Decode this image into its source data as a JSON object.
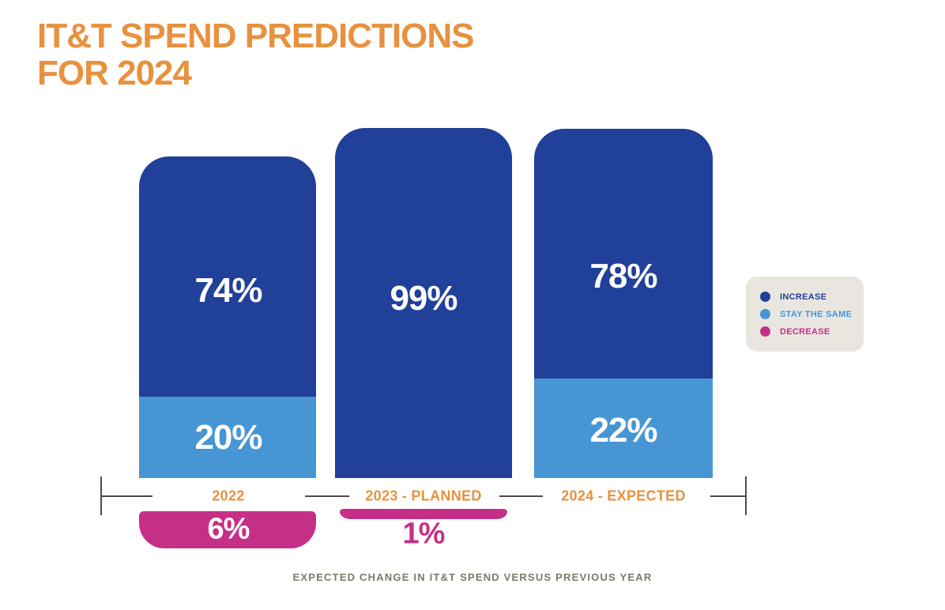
{
  "title": {
    "line1": "IT&T SPEND PREDICTIONS",
    "line2": "FOR 2024"
  },
  "caption": "EXPECTED CHANGE IN IT&T SPEND VERSUS PREVIOUS YEAR",
  "colors": {
    "increase": "#21409A",
    "stay_the_same": "#4796D3",
    "decrease": "#C62F87",
    "accent_orange": "#E8913E",
    "caption_gray": "#7B796B",
    "legend_background": "#E9E6E0",
    "axis_gray": "#4D4D4D"
  },
  "legend": {
    "items": [
      {
        "label": "INCREASE",
        "color": "#21409A"
      },
      {
        "label": "STAY THE SAME",
        "color": "#4796D3"
      },
      {
        "label": "DECREASE",
        "color": "#C62F87"
      }
    ]
  },
  "bars": [
    {
      "category": "2022",
      "increase_label": "74%",
      "stay_label": "20%",
      "decrease_label": "6%"
    },
    {
      "category": "2023 - PLANNED",
      "increase_label": "99%",
      "decrease_label": "1%"
    },
    {
      "category": "2024 - EXPECTED",
      "increase_label": "78%",
      "stay_label": "22%"
    }
  ],
  "chart_data": {
    "type": "bar",
    "stacked": true,
    "categories": [
      "2022",
      "2023 - PLANNED",
      "2024 - EXPECTED"
    ],
    "series": [
      {
        "name": "INCREASE",
        "values": [
          74,
          99,
          78
        ]
      },
      {
        "name": "STAY THE SAME",
        "values": [
          20,
          0,
          22
        ]
      },
      {
        "name": "DECREASE",
        "values": [
          6,
          1,
          0
        ]
      }
    ],
    "unit": "%",
    "title": "IT&T SPEND PREDICTIONS FOR 2024",
    "xlabel": "EXPECTED CHANGE IN IT&T SPEND VERSUS PREVIOUS YEAR",
    "ylabel": "",
    "legend_position": "right",
    "grid": false,
    "notes": "Rounded-top stacked columns; DECREASE segments are drawn detached below the category axis line; 2024 - EXPECTED has no decrease segment."
  }
}
